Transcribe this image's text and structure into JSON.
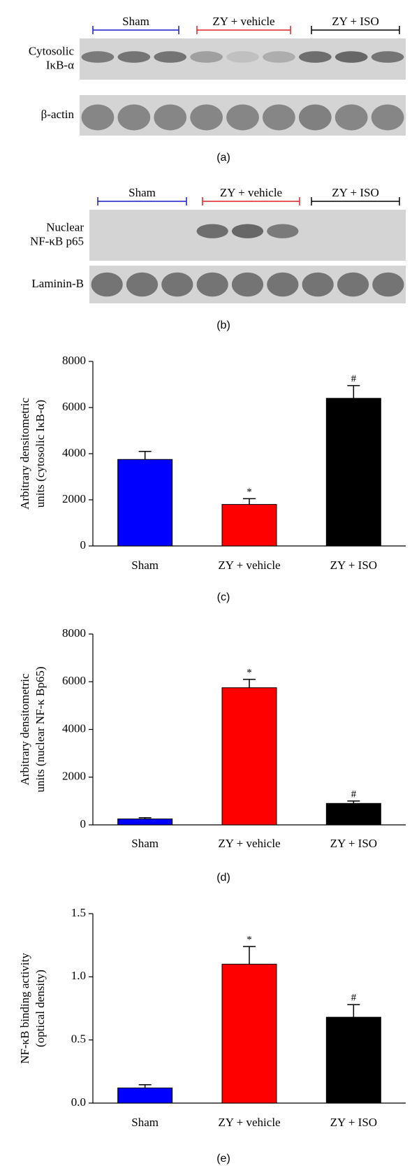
{
  "blots": [
    {
      "groups": [
        "Sham",
        "ZY + vehicle",
        "ZY + ISO"
      ],
      "group_colors": [
        "#1a1acc",
        "#dd2222",
        "#000000"
      ],
      "rows": [
        [
          "Cytosolic",
          "IκB-α"
        ],
        [
          "β-actin"
        ]
      ],
      "caption": "(a)"
    },
    {
      "groups": [
        "Sham",
        "ZY + vehicle",
        "ZY + ISO"
      ],
      "group_colors": [
        "#1a1acc",
        "#dd2222",
        "#000000"
      ],
      "rows": [
        [
          "Nuclear",
          "NF-κB p65"
        ],
        [
          "Laminin-B"
        ]
      ],
      "caption": "(b)"
    }
  ],
  "chart_data": [
    {
      "type": "bar",
      "categories": [
        "Sham",
        "ZY + vehicle",
        "ZY + ISO"
      ],
      "colors": [
        "#0000ff",
        "#ff0000",
        "#000000"
      ],
      "values": [
        3750,
        1800,
        6400
      ],
      "errors": [
        350,
        250,
        550
      ],
      "annotations": [
        null,
        "*",
        "#"
      ],
      "ylabel": [
        "Arbitrary densitometric",
        "units (cytosolic IκB-α)"
      ],
      "ylim": [
        0,
        8000
      ],
      "yticks": [
        0,
        2000,
        4000,
        6000,
        8000
      ],
      "caption": "(c)"
    },
    {
      "type": "bar",
      "categories": [
        "Sham",
        "ZY + vehicle",
        "ZY + ISO"
      ],
      "colors": [
        "#0000ff",
        "#ff0000",
        "#000000"
      ],
      "values": [
        250,
        5750,
        900
      ],
      "errors": [
        50,
        350,
        100
      ],
      "annotations": [
        null,
        "*",
        "#"
      ],
      "ylabel": [
        "Arbitrary densitometric",
        "units (nuclear NF-κ Bp65)"
      ],
      "ylim": [
        0,
        8000
      ],
      "yticks": [
        0,
        2000,
        4000,
        6000,
        8000
      ],
      "caption": "(d)"
    },
    {
      "type": "bar",
      "categories": [
        "Sham",
        "ZY + vehicle",
        "ZY + ISO"
      ],
      "colors": [
        "#0000ff",
        "#ff0000",
        "#000000"
      ],
      "values": [
        0.12,
        1.1,
        0.68
      ],
      "errors": [
        0.025,
        0.14,
        0.1
      ],
      "annotations": [
        null,
        "*",
        "#"
      ],
      "ylabel": [
        "NF-κB binding activity",
        "(optical density)"
      ],
      "ylim": [
        0,
        1.5
      ],
      "yticks": [
        {
          "value": 0,
          "label": "0.0"
        },
        0.5,
        {
          "value": 1,
          "label": "1.0"
        },
        1.5
      ],
      "caption": "(e)"
    }
  ]
}
